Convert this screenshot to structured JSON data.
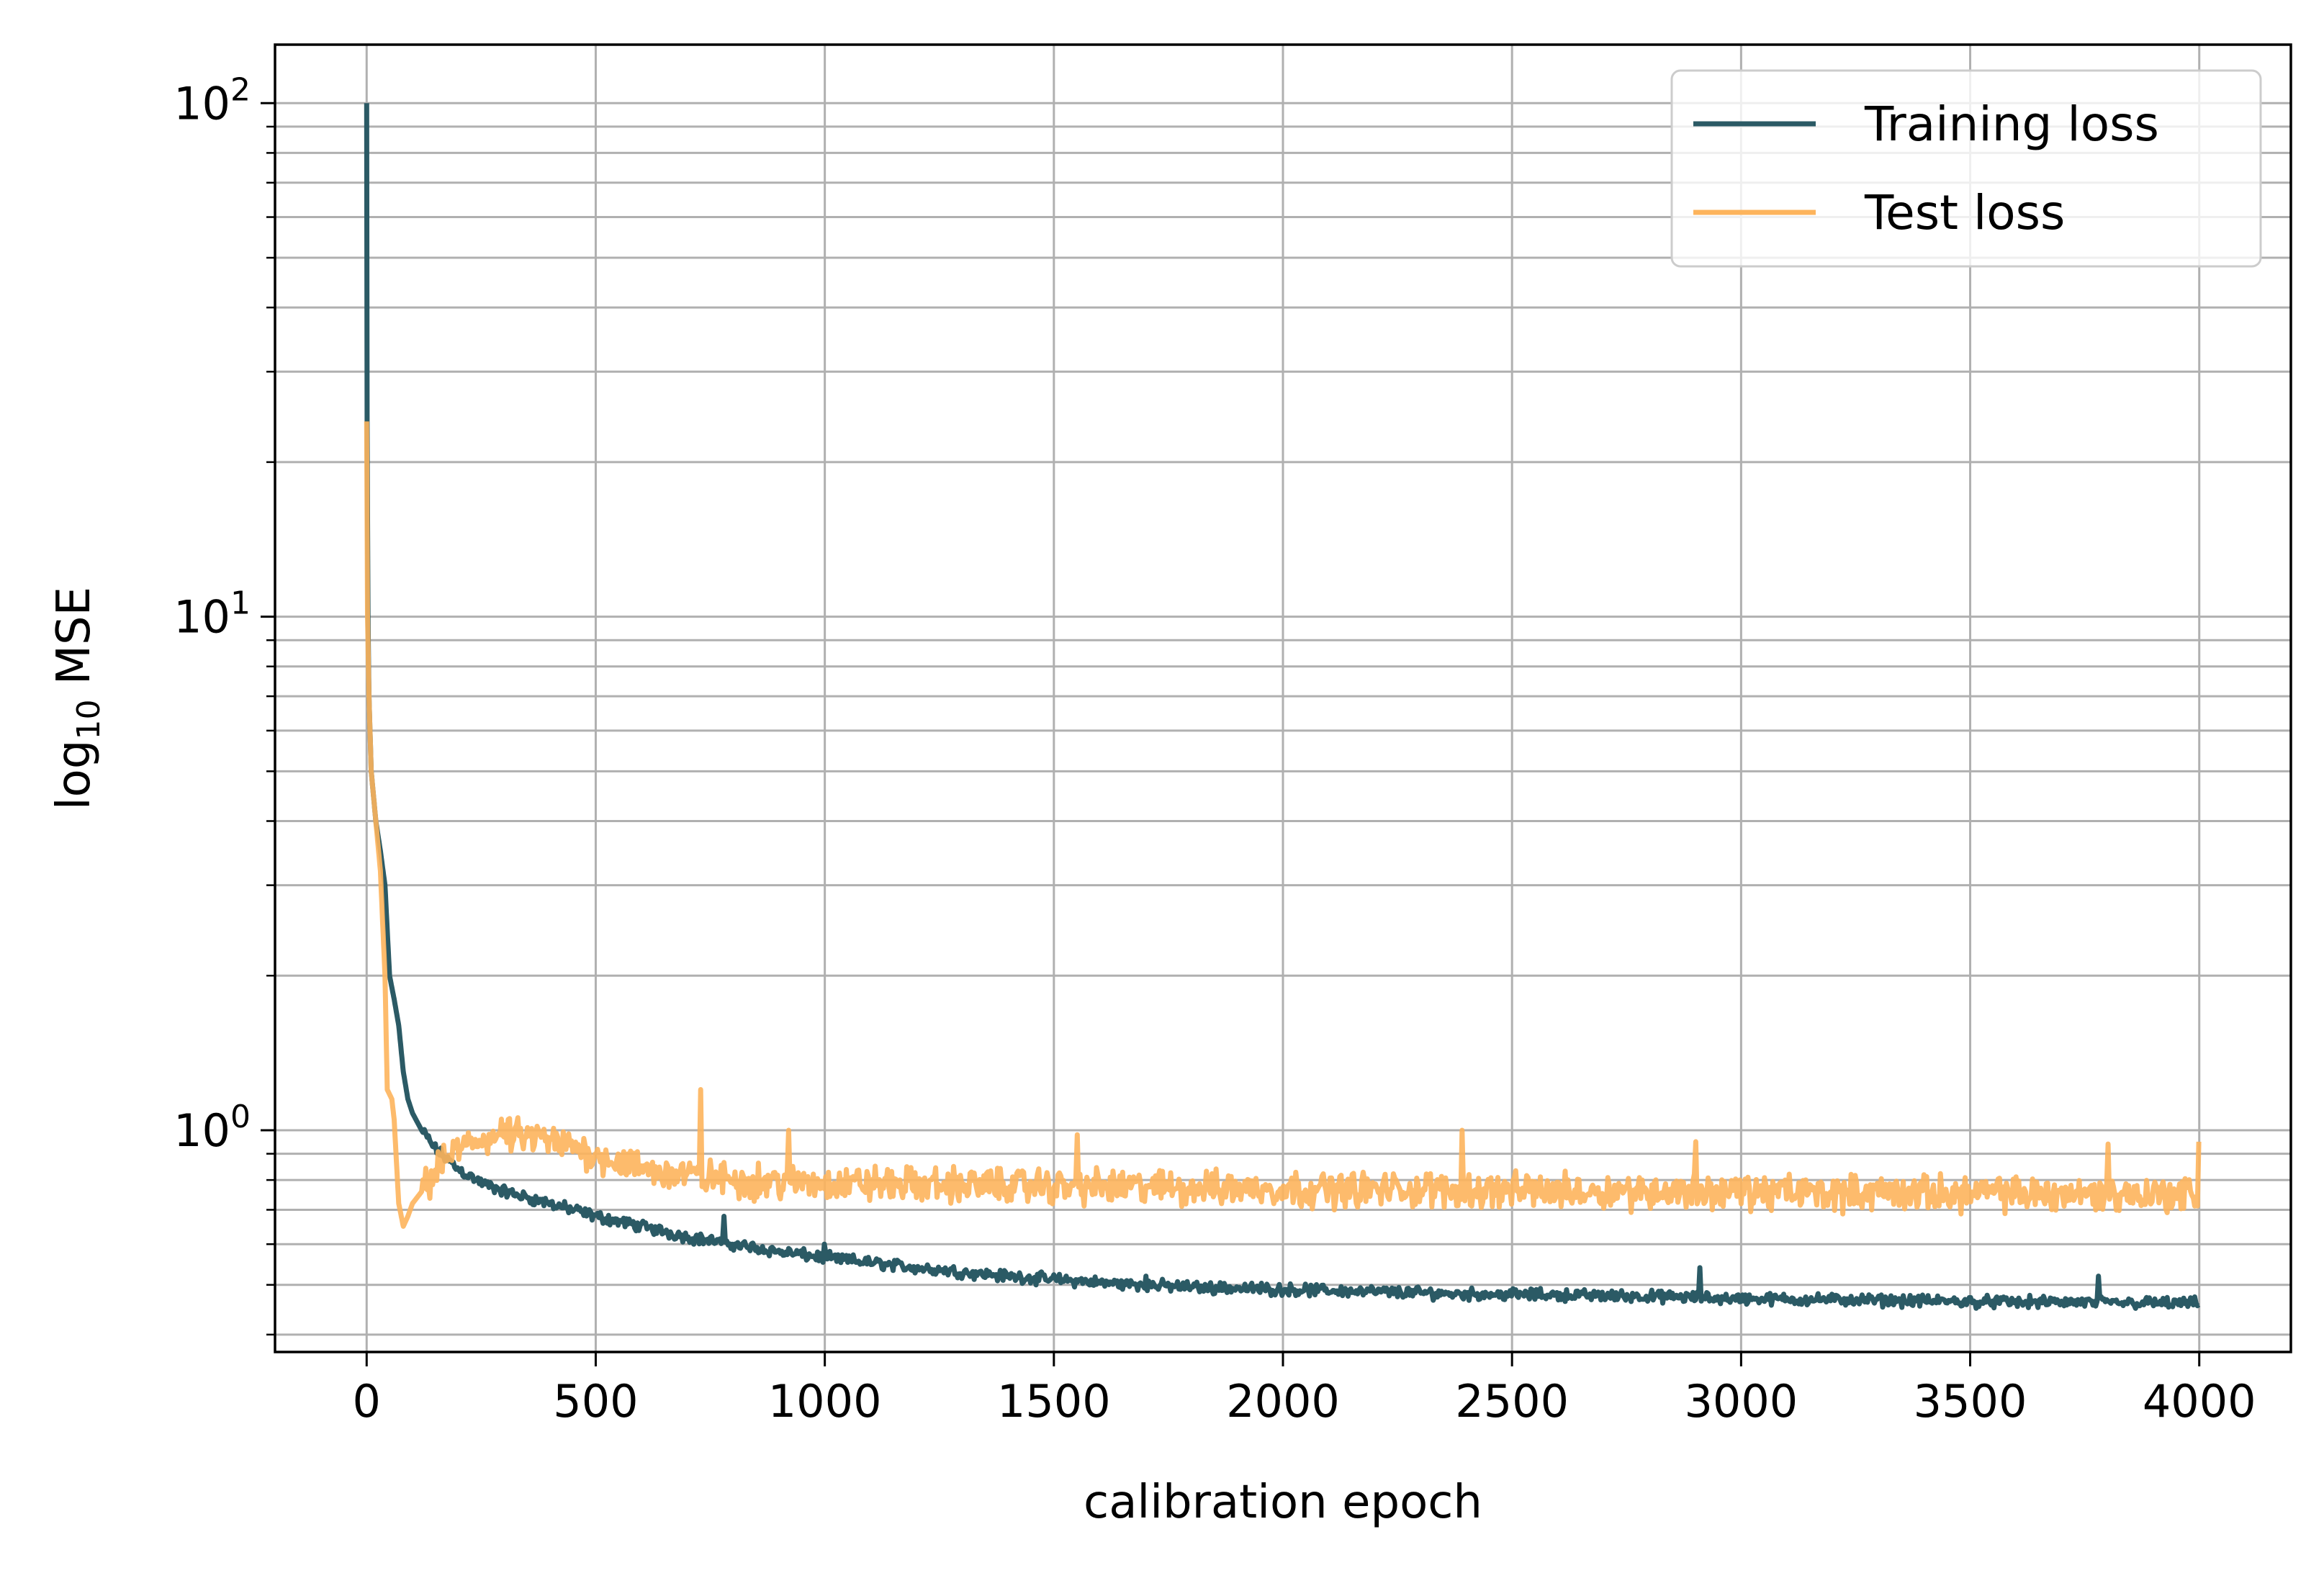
{
  "chart_data": {
    "type": "line",
    "xlabel": "calibration epoch",
    "ylabel_main": "log",
    "ylabel_sub": "10",
    "ylabel_rest": " MSE",
    "xlim": [
      -200,
      4200
    ],
    "ylim": [
      0.37,
      130
    ],
    "yscale": "log",
    "grid": true,
    "legend_position": "top-right",
    "x_ticks": [
      0,
      500,
      1000,
      1500,
      2000,
      2500,
      3000,
      3500,
      4000
    ],
    "x_tick_labels": [
      "0",
      "500",
      "1000",
      "1500",
      "2000",
      "2500",
      "3000",
      "3500",
      "4000"
    ],
    "y_ticks": [
      1,
      10,
      100
    ],
    "y_tick_labels": [
      {
        "base": "10",
        "exp": "0"
      },
      {
        "base": "10",
        "exp": "1"
      },
      {
        "base": "10",
        "exp": "2"
      }
    ],
    "series": [
      {
        "name": "Training loss",
        "color": "#2b5a65",
        "x": [
          0,
          1,
          3,
          5,
          10,
          20,
          30,
          40,
          50,
          60,
          70,
          80,
          90,
          100,
          120,
          150,
          200,
          250,
          300,
          400,
          500,
          600,
          700,
          800,
          900,
          1000,
          1200,
          1400,
          1600,
          1800,
          2000,
          2200,
          2400,
          2600,
          2800,
          3000,
          3200,
          3400,
          3600,
          3800,
          4000
        ],
        "y": [
          100,
          24,
          10,
          7,
          5,
          4,
          3.5,
          3,
          2,
          1.8,
          1.6,
          1.3,
          1.15,
          1.08,
          1.0,
          0.92,
          0.84,
          0.79,
          0.76,
          0.72,
          0.68,
          0.65,
          0.62,
          0.6,
          0.58,
          0.565,
          0.54,
          0.52,
          0.505,
          0.495,
          0.49,
          0.485,
          0.48,
          0.478,
          0.475,
          0.47,
          0.468,
          0.465,
          0.463,
          0.462,
          0.46
        ],
        "noise": 0.02,
        "spikes": [
          [
            780,
            0.68
          ],
          [
            1000,
            0.6
          ],
          [
            1700,
            0.52
          ],
          [
            2910,
            0.54
          ],
          [
            3780,
            0.52
          ]
        ]
      },
      {
        "name": "Test loss",
        "color": "#fdb45c",
        "x": [
          0,
          2,
          5,
          10,
          20,
          30,
          40,
          45,
          55,
          60,
          70,
          80,
          90,
          100,
          130,
          160,
          200,
          250,
          300,
          350,
          400,
          500,
          600,
          700,
          800,
          1000,
          1500,
          2000,
          2500,
          3000,
          3500,
          4000
        ],
        "y": [
          24,
          10,
          7,
          5,
          4,
          3.2,
          2.0,
          1.2,
          1.15,
          1.05,
          0.72,
          0.65,
          0.68,
          0.72,
          0.78,
          0.85,
          0.92,
          0.96,
          0.98,
          0.97,
          0.95,
          0.9,
          0.84,
          0.82,
          0.8,
          0.79,
          0.78,
          0.77,
          0.765,
          0.76,
          0.755,
          0.75
        ],
        "noise": 0.06,
        "spikes": [
          [
            730,
            1.2
          ],
          [
            920,
            1.0
          ],
          [
            1550,
            0.98
          ],
          [
            2390,
            1.0
          ],
          [
            2900,
            0.95
          ],
          [
            3800,
            0.94
          ],
          [
            4000,
            0.95
          ]
        ]
      }
    ]
  }
}
